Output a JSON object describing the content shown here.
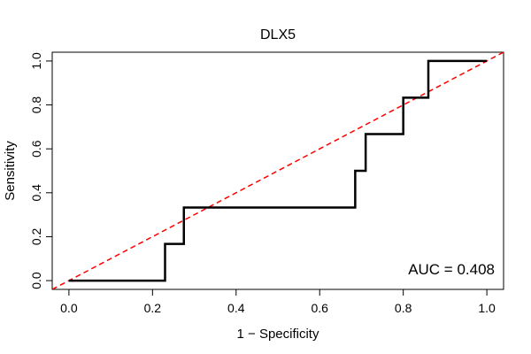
{
  "chart_data": {
    "type": "line",
    "title": "DLX5",
    "xlabel": "1 − Specificity",
    "ylabel": "Sensitivity",
    "xlim": [
      -0.04,
      1.04
    ],
    "ylim": [
      -0.04,
      1.04
    ],
    "xticks": [
      {
        "value": 0.0,
        "label": "0.0"
      },
      {
        "value": 0.2,
        "label": "0.2"
      },
      {
        "value": 0.4,
        "label": "0.4"
      },
      {
        "value": 0.6,
        "label": "0.6"
      },
      {
        "value": 0.8,
        "label": "0.8"
      },
      {
        "value": 1.0,
        "label": "1.0"
      }
    ],
    "yticks": [
      {
        "value": 0.0,
        "label": "0.0"
      },
      {
        "value": 0.2,
        "label": "0.2"
      },
      {
        "value": 0.4,
        "label": "0.4"
      },
      {
        "value": 0.6,
        "label": "0.6"
      },
      {
        "value": 0.8,
        "label": "0.8"
      },
      {
        "value": 1.0,
        "label": "1.0"
      }
    ],
    "series": [
      {
        "color": "#000000",
        "style": "solid",
        "x": [
          0.0,
          0.23,
          0.23,
          0.275,
          0.275,
          0.685,
          0.685,
          0.71,
          0.71,
          0.8,
          0.8,
          0.86,
          0.86,
          1.0
        ],
        "y": [
          0.0,
          0.0,
          0.167,
          0.167,
          0.333,
          0.333,
          0.5,
          0.5,
          0.667,
          0.667,
          0.833,
          0.833,
          1.0,
          1.0
        ]
      },
      {
        "color": "#ff0000",
        "style": "dashed",
        "x": [
          -0.04,
          1.04
        ],
        "y": [
          -0.04,
          1.04
        ]
      }
    ],
    "annotation": "AUC = 0.408",
    "grid": false
  }
}
